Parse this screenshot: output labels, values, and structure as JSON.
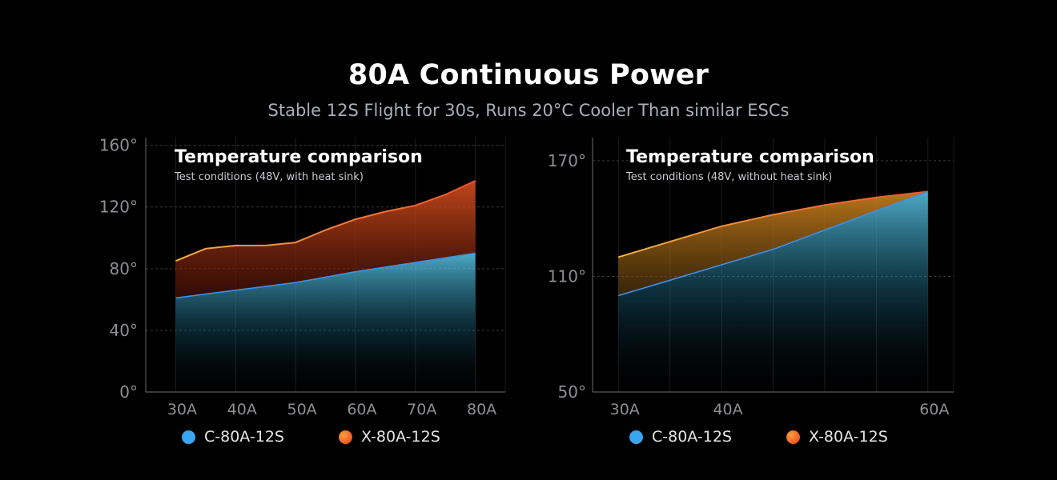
{
  "header": {
    "title": "80A Continuous Power",
    "subtitle": "Stable 12S Flight for 30s, Runs 20°C Cooler Than similar ESCs"
  },
  "colors": {
    "c_series": "#3aa6f0",
    "x_series": "#f2622a",
    "x_series_light": "#f6a23a"
  },
  "chart_data": [
    {
      "type": "area",
      "title": "Temperature comparison",
      "subtitle": "Test conditions (48V, with heat sink)",
      "x": [
        30,
        40,
        50,
        60,
        70,
        80
      ],
      "x_tick_labels": [
        "30A",
        "40A",
        "50A",
        "60A",
        "70A",
        "80A"
      ],
      "y_ticks": [
        0,
        40,
        80,
        120,
        160
      ],
      "y_tick_labels": [
        "0°",
        "40°",
        "80°",
        "120°",
        "160°"
      ],
      "xlim": [
        25,
        85
      ],
      "ylim": [
        0,
        165
      ],
      "series": [
        {
          "name": "C-80A-12S",
          "x": [
            30,
            40,
            50,
            60,
            70,
            80
          ],
          "values": [
            61,
            66,
            71,
            78,
            84,
            90
          ]
        },
        {
          "name": "X-80A-12S",
          "x": [
            30,
            35,
            40,
            45,
            50,
            55,
            60,
            65,
            70,
            75,
            80
          ],
          "values": [
            85,
            93,
            95,
            95,
            97,
            105,
            112,
            117,
            121,
            128,
            137
          ]
        }
      ],
      "legend": [
        "C-80A-12S",
        "X-80A-12S"
      ]
    },
    {
      "type": "area",
      "title": "Temperature comparison",
      "subtitle": "Test conditions (48V, without heat sink)",
      "x_tick_labels": [
        "30A",
        "40A",
        "60A"
      ],
      "x_ticks": [
        30,
        40,
        60
      ],
      "y_ticks": [
        50,
        110,
        170
      ],
      "y_tick_labels": [
        "50°",
        "110°",
        "170°"
      ],
      "xlim": [
        27.5,
        62.5
      ],
      "ylim": [
        50,
        182
      ],
      "series": [
        {
          "name": "C-80A-12S",
          "x": [
            30,
            35,
            40,
            45,
            50,
            55,
            60
          ],
          "values": [
            100,
            108,
            116,
            124,
            134,
            144,
            154
          ]
        },
        {
          "name": "X-80A-12S",
          "x": [
            30,
            35,
            40,
            45,
            50,
            55,
            60
          ],
          "values": [
            120,
            128,
            136,
            142,
            147,
            151,
            154
          ]
        }
      ],
      "legend": [
        "C-80A-12S",
        "X-80A-12S"
      ]
    }
  ]
}
